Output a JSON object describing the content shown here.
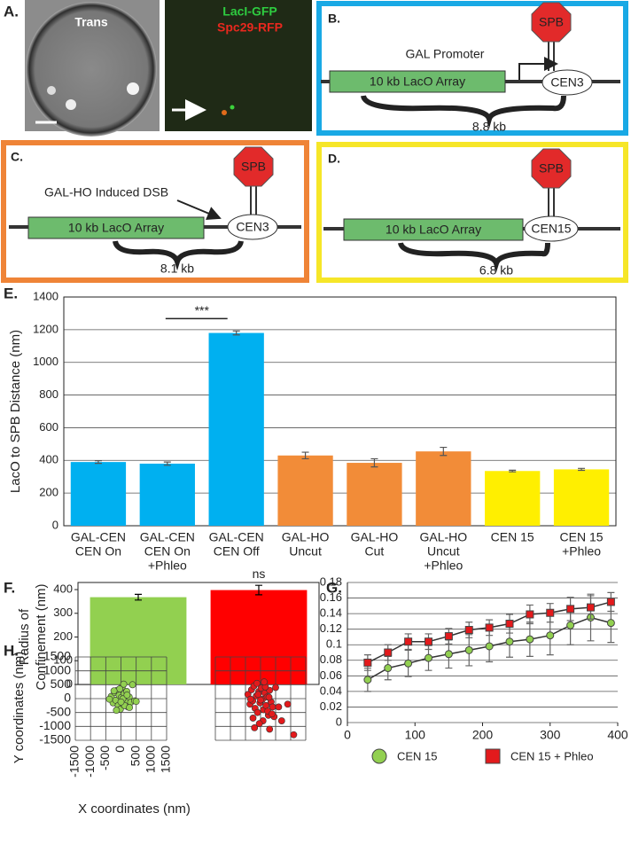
{
  "panels": {
    "A": {
      "label": "A.",
      "trans": "Trans",
      "gfp": "LacI-GFP",
      "rfp": "Spc29-RFP"
    },
    "B": {
      "label": "B.",
      "spb": "SPB",
      "promoter": "GAL Promoter",
      "array": "10 kb LacO Array",
      "cen": "CEN3",
      "distance": "8.8 kb"
    },
    "C": {
      "label": "C.",
      "spb": "SPB",
      "dsb": "GAL-HO Induced DSB",
      "array": "10 kb LacO Array",
      "cen": "CEN3",
      "distance": "8.1 kb"
    },
    "D": {
      "label": "D.",
      "spb": "SPB",
      "array": "10 kb LacO Array",
      "cen": "CEN15",
      "distance": "6.8 kb"
    }
  },
  "chart_data": [
    {
      "type": "bar",
      "panel": "E.",
      "y_label": "LacO to SPB Distance (nm)",
      "categories": [
        [
          "GAL-CEN",
          "CEN On"
        ],
        [
          "GAL-CEN",
          "CEN On",
          "+Phleo"
        ],
        [
          "GAL-CEN",
          "CEN Off"
        ],
        [
          "GAL-HO",
          "Uncut"
        ],
        [
          "GAL-HO",
          "Cut"
        ],
        [
          "GAL-HO",
          "Uncut",
          "+Phleo"
        ],
        [
          "CEN 15"
        ],
        [
          "CEN 15",
          "+Phleo"
        ]
      ],
      "values": [
        390,
        380,
        1180,
        430,
        385,
        455,
        335,
        345
      ],
      "errors": [
        8,
        10,
        12,
        20,
        25,
        25,
        5,
        6
      ],
      "colors": [
        "#00b0f0",
        "#00b0f0",
        "#00b0f0",
        "#f28c38",
        "#f28c38",
        "#f28c38",
        "#ffef00",
        "#ffef00"
      ],
      "ylim": [
        0,
        1400
      ],
      "yticks": [
        0,
        200,
        400,
        600,
        800,
        1000,
        1200,
        1400
      ],
      "grid": true,
      "annotation": "***"
    },
    {
      "type": "bar",
      "panel": "F.",
      "y_label": [
        "Radius of",
        "Confinement (nm)"
      ],
      "values": [
        368,
        398
      ],
      "errors": [
        12,
        20
      ],
      "colors": [
        "#92d050",
        "#ff0000"
      ],
      "ylim": [
        0,
        430
      ],
      "yticks": [
        0,
        100,
        200,
        300,
        400
      ],
      "grid": false,
      "annotation": "ns"
    },
    {
      "type": "line",
      "panel": "G.",
      "x": [
        30,
        60,
        90,
        120,
        150,
        180,
        210,
        240,
        270,
        300,
        330,
        360,
        390
      ],
      "series": [
        {
          "name": "CEN 15",
          "color": "#92d050",
          "marker": "circle",
          "values": [
            0.055,
            0.07,
            0.076,
            0.083,
            0.088,
            0.093,
            0.098,
            0.104,
            0.107,
            0.112,
            0.125,
            0.135,
            0.128
          ],
          "errors": [
            0.015,
            0.015,
            0.017,
            0.016,
            0.018,
            0.02,
            0.02,
            0.02,
            0.022,
            0.025,
            0.025,
            0.03,
            0.025
          ]
        },
        {
          "name": "CEN 15 + Phleo",
          "color": "#e31a1c",
          "marker": "square",
          "values": [
            0.077,
            0.09,
            0.104,
            0.104,
            0.111,
            0.119,
            0.122,
            0.127,
            0.139,
            0.141,
            0.146,
            0.148,
            0.155
          ],
          "errors": [
            0.01,
            0.01,
            0.01,
            0.01,
            0.01,
            0.01,
            0.01,
            0.012,
            0.012,
            0.012,
            0.015,
            0.015,
            0.012
          ]
        }
      ],
      "xlim": [
        0,
        400
      ],
      "xticks": [
        0,
        100,
        200,
        300,
        400
      ],
      "ylim": [
        0,
        0.18
      ],
      "yticks": [
        0,
        0.02,
        0.04,
        0.06,
        0.08,
        0.1,
        0.12,
        0.14,
        0.16,
        0.18
      ],
      "grid": true
    },
    {
      "type": "scatter",
      "panel": "H.",
      "x_label": "X coordinates (nm)",
      "y_label": "Y coordinates (nm)",
      "tick_labels": true,
      "series": [
        {
          "color": "#92d050",
          "x": [
            -320,
            -260,
            -210,
            -170,
            -130,
            -90,
            -60,
            -20,
            10,
            40,
            70,
            110,
            150,
            190,
            230,
            270,
            320,
            380,
            450,
            -380,
            -150,
            -40,
            60,
            120,
            200,
            -230,
            0,
            90,
            280,
            500
          ],
          "values": [
            80,
            -150,
            220,
            -60,
            300,
            -250,
            120,
            -380,
            40,
            420,
            -200,
            180,
            -90,
            260,
            -300,
            60,
            -130,
            500,
            -80,
            -20,
            -420,
            350,
            -10,
            -250,
            130,
            280,
            -120,
            520,
            -320,
            -100
          ]
        }
      ],
      "xlim": [
        -1500,
        1500
      ],
      "xticks": [
        -1500,
        -1000,
        -500,
        0,
        500,
        1000,
        1500
      ],
      "ylim": [
        -1500,
        1500
      ],
      "yticks": [
        -1500,
        -1000,
        -500,
        0,
        500,
        1000,
        1500
      ],
      "grid": true
    },
    {
      "type": "scatter",
      "tick_labels": false,
      "series": [
        {
          "color": "#e31a1c",
          "x": [
            -420,
            -350,
            -300,
            -260,
            -220,
            -180,
            -140,
            -100,
            -60,
            -20,
            20,
            60,
            100,
            140,
            180,
            220,
            260,
            300,
            350,
            400,
            -250,
            -120,
            0,
            80,
            160,
            240,
            -330,
            -40,
            120,
            280,
            450,
            600,
            700,
            900,
            1100,
            -200,
            300,
            500,
            -80,
            380
          ],
          "values": [
            150,
            -200,
            320,
            -80,
            450,
            -350,
            100,
            -500,
            250,
            -150,
            380,
            -30,
            -400,
            200,
            -250,
            60,
            -600,
            300,
            -120,
            -300,
            -700,
            550,
            -50,
            -800,
            420,
            -450,
            -20,
            -900,
            600,
            50,
            -650,
            -300,
            -800,
            -200,
            -1300,
            -1050,
            -1100,
            400,
            150,
            -550
          ]
        }
      ],
      "xlim": [
        -1500,
        1500
      ],
      "xticks": [
        -1500,
        -1000,
        -500,
        0,
        500,
        1000,
        1500
      ],
      "ylim": [
        -1500,
        1500
      ],
      "yticks": [
        -1500,
        -1000,
        -500,
        0,
        500,
        1000,
        1500
      ],
      "grid": true
    }
  ]
}
